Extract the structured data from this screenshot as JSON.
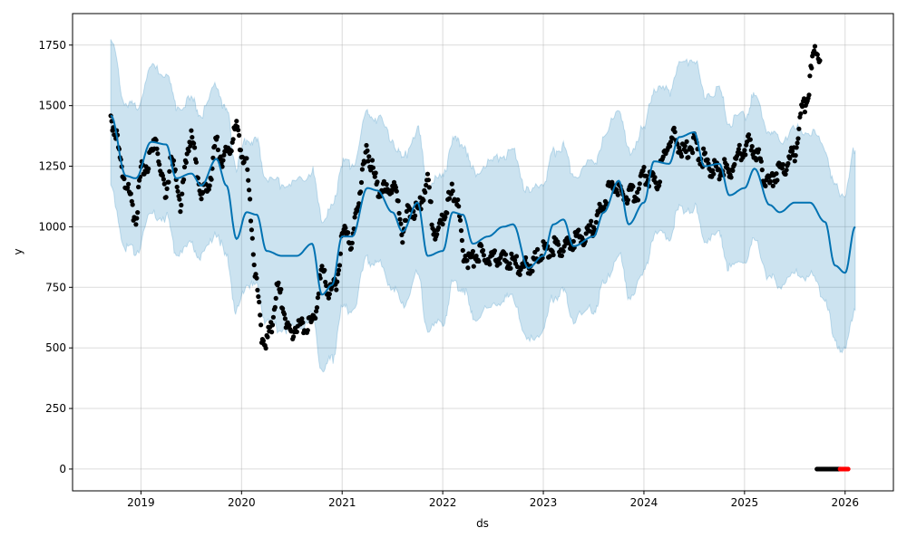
{
  "chart_data": {
    "type": "line",
    "title": "",
    "xlabel": "ds",
    "ylabel": "y",
    "xlim": [
      2018.32,
      2026.48
    ],
    "ylim": [
      -90,
      1880
    ],
    "grid": true,
    "x_ticks": [
      2019,
      2020,
      2021,
      2022,
      2023,
      2024,
      2025,
      2026
    ],
    "x_tick_labels": [
      "2019",
      "2020",
      "2021",
      "2022",
      "2023",
      "2024",
      "2025",
      "2026"
    ],
    "y_ticks": [
      0,
      250,
      500,
      750,
      1000,
      1250,
      1500,
      1750
    ],
    "y_tick_labels": [
      "0",
      "250",
      "500",
      "750",
      "1000",
      "1250",
      "1500",
      "1750"
    ],
    "colors": {
      "forecast": "#0072B2",
      "interval": "#0072B2",
      "observed": "#000000",
      "recent": "#ff0000"
    },
    "forecast": {
      "name": "yhat",
      "x": [
        2018.7,
        2018.85,
        2018.95,
        2019.1,
        2019.25,
        2019.35,
        2019.5,
        2019.6,
        2019.75,
        2019.85,
        2019.95,
        2020.05,
        2020.15,
        2020.25,
        2020.4,
        2020.55,
        2020.7,
        2020.8,
        2020.9,
        2021.0,
        2021.1,
        2021.25,
        2021.35,
        2021.5,
        2021.6,
        2021.75,
        2021.85,
        2022.0,
        2022.1,
        2022.2,
        2022.3,
        2022.45,
        2022.6,
        2022.7,
        2022.85,
        2023.0,
        2023.1,
        2023.2,
        2023.3,
        2023.5,
        2023.6,
        2023.75,
        2023.85,
        2024.0,
        2024.1,
        2024.25,
        2024.35,
        2024.5,
        2024.6,
        2024.75,
        2024.85,
        2025.0,
        2025.1,
        2025.25,
        2025.35,
        2025.5,
        2025.65,
        2025.8,
        2025.9,
        2026.0,
        2026.1
      ],
      "yhat": [
        1460,
        1210,
        1200,
        1350,
        1340,
        1200,
        1220,
        1170,
        1280,
        1170,
        950,
        1060,
        1050,
        900,
        880,
        880,
        930,
        720,
        760,
        960,
        960,
        1160,
        1150,
        1060,
        980,
        1100,
        880,
        900,
        1060,
        1050,
        930,
        960,
        1000,
        1010,
        830,
        880,
        1010,
        1030,
        920,
        960,
        1060,
        1190,
        1010,
        1100,
        1270,
        1260,
        1370,
        1390,
        1250,
        1260,
        1130,
        1160,
        1240,
        1090,
        1060,
        1100,
        1100,
        1020,
        840,
        810,
        1000
      ],
      "interval_halfwidth": [
        300,
        300,
        300,
        300,
        300,
        300,
        300,
        300,
        300,
        300,
        300,
        300,
        300,
        300,
        300,
        300,
        300,
        310,
        310,
        300,
        300,
        300,
        300,
        300,
        300,
        300,
        300,
        300,
        300,
        300,
        300,
        300,
        300,
        300,
        310,
        300,
        300,
        300,
        300,
        300,
        300,
        300,
        300,
        300,
        300,
        300,
        300,
        310,
        300,
        300,
        300,
        300,
        300,
        300,
        300,
        300,
        300,
        310,
        320,
        320,
        330
      ]
    },
    "observed": {
      "name": "y",
      "x": [
        2018.7,
        2018.75,
        2018.8,
        2018.85,
        2018.9,
        2018.95,
        2019.0,
        2019.05,
        2019.1,
        2019.15,
        2019.2,
        2019.25,
        2019.3,
        2019.35,
        2019.4,
        2019.45,
        2019.5,
        2019.55,
        2019.6,
        2019.65,
        2019.7,
        2019.75,
        2019.8,
        2019.85,
        2019.9,
        2019.95,
        2020.0,
        2020.05,
        2020.1,
        2020.15,
        2020.2,
        2020.25,
        2020.3,
        2020.35,
        2020.4,
        2020.45,
        2020.5,
        2020.55,
        2020.6,
        2020.65,
        2020.7,
        2020.75,
        2020.8,
        2020.85,
        2020.9,
        2020.95,
        2021.0,
        2021.05,
        2021.1,
        2021.15,
        2021.2,
        2021.25,
        2021.3,
        2021.35,
        2021.4,
        2021.45,
        2021.5,
        2021.55,
        2021.6,
        2021.65,
        2021.7,
        2021.75,
        2021.8,
        2021.85,
        2021.9,
        2021.95,
        2022.0,
        2022.05,
        2022.1,
        2022.15,
        2022.2,
        2022.25,
        2022.3,
        2022.35,
        2022.4,
        2022.45,
        2022.5,
        2022.55,
        2022.6,
        2022.65,
        2022.7,
        2022.75,
        2022.8,
        2022.85,
        2022.9,
        2022.95,
        2023.0,
        2023.05,
        2023.1,
        2023.15,
        2023.2,
        2023.25,
        2023.3,
        2023.35,
        2023.4,
        2023.45,
        2023.5,
        2023.55,
        2023.6,
        2023.65,
        2023.7,
        2023.75,
        2023.8,
        2023.85,
        2023.9,
        2023.95,
        2024.0,
        2024.05,
        2024.1,
        2024.15,
        2024.2,
        2024.25,
        2024.3,
        2024.35,
        2024.4,
        2024.45,
        2024.5,
        2024.55,
        2024.6,
        2024.65,
        2024.7,
        2024.75,
        2024.8,
        2024.85,
        2024.9,
        2024.95,
        2025.0,
        2025.05,
        2025.1,
        2025.15,
        2025.2,
        2025.25,
        2025.3,
        2025.35,
        2025.4,
        2025.45,
        2025.5,
        2025.55,
        2025.6,
        2025.65,
        2025.7,
        2025.75
      ],
      "y": [
        1450,
        1400,
        1250,
        1180,
        1100,
        1030,
        1230,
        1250,
        1280,
        1380,
        1200,
        1150,
        1270,
        1200,
        1080,
        1300,
        1380,
        1250,
        1120,
        1150,
        1230,
        1350,
        1280,
        1300,
        1350,
        1400,
        1300,
        1250,
        1000,
        750,
        550,
        520,
        600,
        750,
        700,
        600,
        560,
        600,
        590,
        600,
        580,
        700,
        820,
        750,
        730,
        780,
        950,
        1000,
        900,
        1100,
        1200,
        1320,
        1250,
        1150,
        1160,
        1130,
        1180,
        1100,
        970,
        1050,
        1080,
        1050,
        1130,
        1200,
        1000,
        960,
        1050,
        1100,
        1150,
        1100,
        900,
        860,
        870,
        900,
        880,
        870,
        880,
        870,
        860,
        860,
        850,
        840,
        830,
        840,
        850,
        870,
        900,
        910,
        920,
        910,
        910,
        920,
        940,
        950,
        960,
        970,
        1000,
        1050,
        1100,
        1150,
        1180,
        1150,
        1120,
        1140,
        1130,
        1150,
        1220,
        1200,
        1180,
        1200,
        1300,
        1350,
        1370,
        1330,
        1300,
        1330,
        1350,
        1300,
        1280,
        1250,
        1240,
        1230,
        1240,
        1220,
        1260,
        1300,
        1330,
        1350,
        1320,
        1280,
        1200,
        1180,
        1220,
        1230,
        1250,
        1280,
        1300,
        1450,
        1500,
        1600,
        1750,
        1700
      ]
    },
    "zero_points": {
      "x_start": 2025.72,
      "x_end": 2025.95,
      "y": 0
    },
    "recent_points": {
      "x_start": 2025.95,
      "x_end": 2026.03,
      "y": 0
    }
  }
}
